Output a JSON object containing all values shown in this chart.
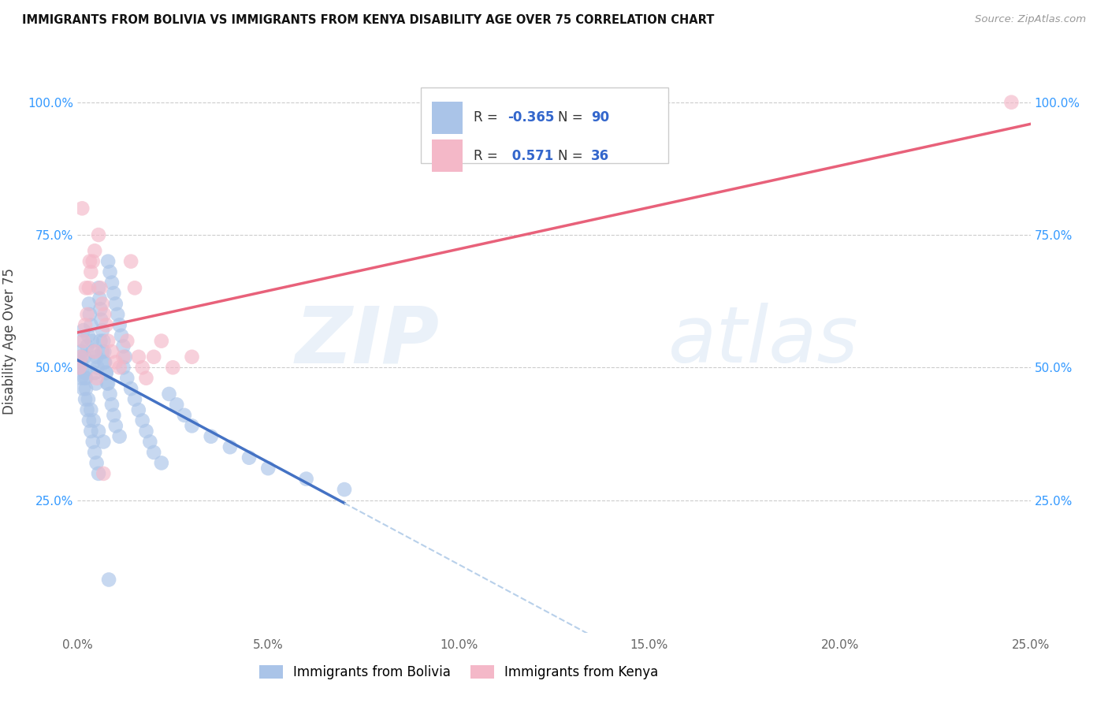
{
  "title": "IMMIGRANTS FROM BOLIVIA VS IMMIGRANTS FROM KENYA DISABILITY AGE OVER 75 CORRELATION CHART",
  "source": "Source: ZipAtlas.com",
  "ylabel": "Disability Age Over 75",
  "xlim": [
    0.0,
    25.0
  ],
  "ylim": [
    0.0,
    110.0
  ],
  "legend_bolivia": "Immigrants from Bolivia",
  "legend_kenya": "Immigrants from Kenya",
  "R_bolivia": -0.365,
  "N_bolivia": 90,
  "R_kenya": 0.571,
  "N_kenya": 36,
  "color_bolivia": "#aac4e8",
  "color_kenya": "#f4b8c8",
  "color_bolivia_line": "#4472c4",
  "color_kenya_line": "#e8617a",
  "color_dashed": "#b8d0ea",
  "watermark_zip": "ZIP",
  "watermark_atlas": "atlas",
  "background_color": "#ffffff",
  "bolivia_x": [
    0.05,
    0.08,
    0.1,
    0.12,
    0.15,
    0.18,
    0.2,
    0.22,
    0.25,
    0.28,
    0.3,
    0.32,
    0.35,
    0.38,
    0.4,
    0.42,
    0.45,
    0.48,
    0.5,
    0.52,
    0.55,
    0.58,
    0.6,
    0.62,
    0.65,
    0.68,
    0.7,
    0.72,
    0.75,
    0.78,
    0.8,
    0.85,
    0.9,
    0.95,
    1.0,
    1.05,
    1.1,
    1.15,
    1.2,
    1.25,
    0.1,
    0.15,
    0.2,
    0.25,
    0.3,
    0.35,
    0.4,
    0.45,
    0.5,
    0.55,
    0.6,
    0.65,
    0.7,
    0.75,
    0.8,
    0.85,
    0.9,
    0.95,
    1.0,
    1.1,
    1.2,
    1.3,
    1.4,
    1.5,
    1.6,
    1.7,
    1.8,
    1.9,
    2.0,
    2.2,
    2.4,
    2.6,
    2.8,
    3.0,
    3.5,
    4.0,
    4.5,
    5.0,
    6.0,
    7.0,
    0.08,
    0.12,
    0.18,
    0.22,
    0.28,
    0.35,
    0.42,
    0.55,
    0.68,
    0.82
  ],
  "bolivia_y": [
    50,
    51,
    53,
    55,
    57,
    52,
    49,
    48,
    54,
    56,
    62,
    60,
    58,
    55,
    53,
    51,
    49,
    47,
    52,
    50,
    65,
    63,
    61,
    59,
    57,
    55,
    53,
    51,
    49,
    47,
    70,
    68,
    66,
    64,
    62,
    60,
    58,
    56,
    54,
    52,
    48,
    46,
    44,
    42,
    40,
    38,
    36,
    34,
    32,
    30,
    55,
    53,
    51,
    49,
    47,
    45,
    43,
    41,
    39,
    37,
    50,
    48,
    46,
    44,
    42,
    40,
    38,
    36,
    34,
    32,
    45,
    43,
    41,
    39,
    37,
    35,
    33,
    31,
    29,
    27,
    52,
    50,
    48,
    46,
    44,
    42,
    40,
    38,
    36,
    10
  ],
  "kenya_x": [
    0.05,
    0.1,
    0.15,
    0.2,
    0.25,
    0.3,
    0.35,
    0.4,
    0.45,
    0.5,
    0.55,
    0.6,
    0.65,
    0.7,
    0.75,
    0.8,
    0.9,
    1.0,
    1.1,
    1.2,
    1.3,
    1.4,
    1.5,
    1.6,
    1.7,
    1.8,
    2.0,
    2.2,
    2.5,
    3.0,
    0.12,
    0.22,
    0.32,
    0.45,
    0.68,
    24.5
  ],
  "kenya_y": [
    50,
    52,
    55,
    58,
    60,
    65,
    68,
    70,
    72,
    48,
    75,
    65,
    62,
    60,
    58,
    55,
    53,
    51,
    50,
    52,
    55,
    70,
    65,
    52,
    50,
    48,
    52,
    55,
    50,
    52,
    80,
    65,
    70,
    53,
    30,
    100
  ]
}
